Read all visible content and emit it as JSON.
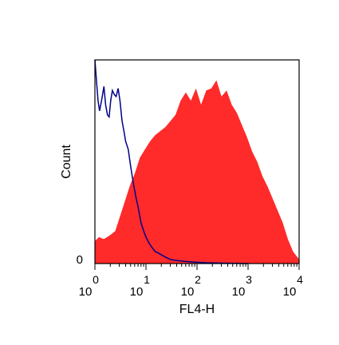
{
  "chart_data": {
    "type": "area",
    "title": "",
    "xlabel": "FL4-H",
    "ylabel": "Count",
    "x_scale": "log",
    "xlim": [
      1,
      10000
    ],
    "y_scale": "linear",
    "ylim": [
      0,
      100
    ],
    "grid": false,
    "legend": "none",
    "x_ticks": [
      {
        "base": "10",
        "exp": "0",
        "value": 1
      },
      {
        "base": "10",
        "exp": "1",
        "value": 10
      },
      {
        "base": "10",
        "exp": "2",
        "value": 100
      },
      {
        "base": "10",
        "exp": "3",
        "value": 1000
      },
      {
        "base": "10",
        "exp": "4",
        "value": 10000
      }
    ],
    "y_tick_label": "0",
    "series": [
      {
        "style": "filled",
        "color": "#ff2a2a",
        "x": [
          1.0,
          1.2,
          1.5,
          2.0,
          2.5,
          3.0,
          3.8,
          4.8,
          6.0,
          7.6,
          9.5,
          12.0,
          15.1,
          19.0,
          24.0,
          30.2,
          38.0,
          47.9,
          60.3,
          75.9,
          95.5,
          120.2,
          151.4,
          190.5,
          239.9,
          302.0,
          380.2,
          478.6,
          602.6,
          758.6,
          955.0,
          1202.3,
          1513.6,
          1905.5,
          2398.8,
          3019.9,
          3801.9,
          4786.3,
          6025.6,
          7585.8,
          10000.0
        ],
        "y": [
          11,
          13,
          12,
          14,
          16,
          22,
          30,
          38,
          44,
          52,
          56,
          60,
          63,
          65,
          67,
          70,
          73,
          80,
          84,
          80,
          86,
          78,
          85,
          86,
          90,
          82,
          85,
          78,
          74,
          68,
          62,
          55,
          50,
          43,
          38,
          32,
          26,
          20,
          12,
          6,
          2
        ]
      },
      {
        "style": "line",
        "color": "#00008b",
        "x": [
          1.0,
          1.07,
          1.15,
          1.23,
          1.35,
          1.5,
          1.62,
          1.76,
          1.9,
          2.04,
          2.2,
          2.4,
          2.6,
          2.85,
          3.1,
          3.4,
          3.7,
          4.0,
          4.5,
          5.0,
          5.6,
          6.3,
          7.1,
          8.0,
          9.0,
          10.0,
          11.5,
          13.0,
          15.0,
          18.0,
          21.0,
          25.0,
          30.0,
          40.0,
          60.0,
          90.0,
          150.0,
          300.0,
          1000.0
        ],
        "y": [
          100,
          90,
          80,
          75,
          80,
          87,
          78,
          73,
          72,
          80,
          85,
          83,
          82,
          86,
          80,
          70,
          65,
          60,
          56,
          48,
          40,
          33,
          27,
          20,
          16,
          13,
          10,
          8,
          6,
          5,
          4,
          3,
          2,
          1.5,
          1,
          0.7,
          0.4,
          0.2,
          0
        ]
      }
    ]
  }
}
